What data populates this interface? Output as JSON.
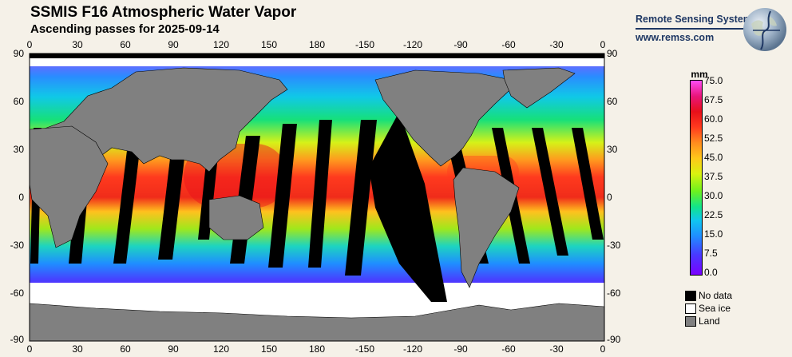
{
  "header": {
    "title": "SSMIS F16 Atmospheric Water Vapor",
    "subtitle": "Ascending passes for 2025-09-14"
  },
  "brand": {
    "name": "Remote Sensing Systems",
    "url": "www.remss.com"
  },
  "map": {
    "lon_ticks": [
      "0",
      "30",
      "60",
      "90",
      "120",
      "150",
      "180",
      "-150",
      "-120",
      "-90",
      "-60",
      "-30",
      "0"
    ],
    "lat_ticks": [
      "90",
      "60",
      "30",
      "0",
      "-30",
      "-60",
      "-90"
    ],
    "colors": {
      "land": "#808080",
      "no_data": "#000000",
      "sea_ice": "#ffffff"
    }
  },
  "colorbar": {
    "unit": "mm",
    "labels": [
      "75.0",
      "67.5",
      "60.0",
      "52.5",
      "45.0",
      "37.5",
      "30.0",
      "22.5",
      "15.0",
      "7.5",
      "0.0"
    ],
    "range": [
      0,
      75
    ]
  },
  "legend": {
    "items": [
      {
        "label": "No data",
        "color": "#000000"
      },
      {
        "label": "Sea ice",
        "color": "#ffffff"
      },
      {
        "label": "Land",
        "color": "#808080"
      }
    ]
  }
}
